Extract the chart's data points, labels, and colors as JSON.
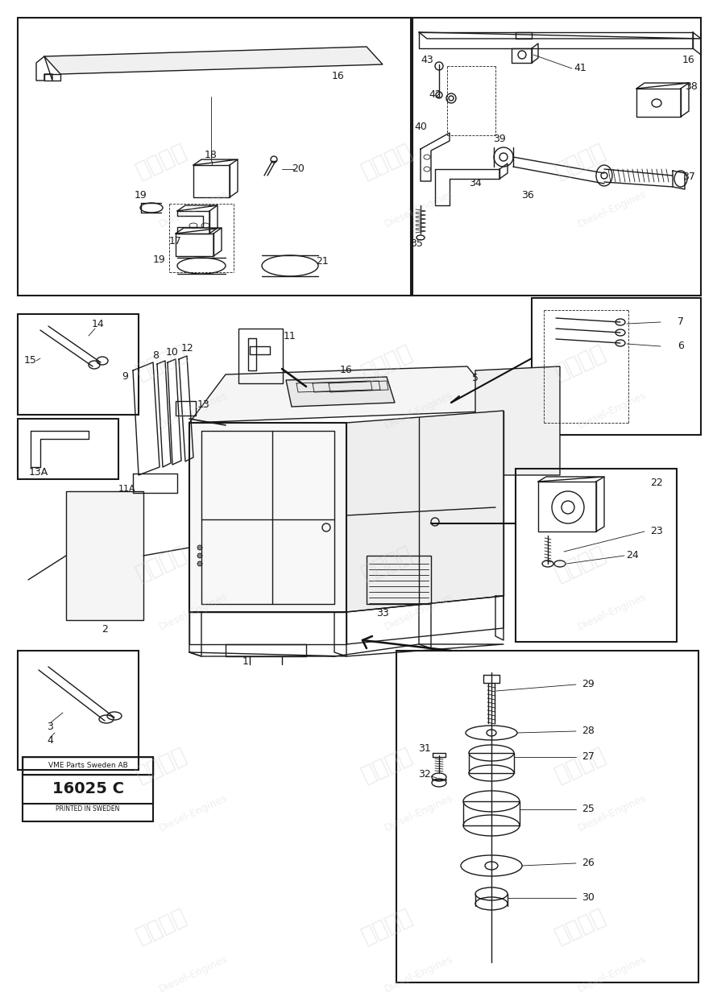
{
  "background_color": "#ffffff",
  "line_color": "#1a1a1a",
  "lw_thick": 1.5,
  "lw_med": 1.0,
  "lw_thin": 0.6,
  "label_fs": 8,
  "part_box": {
    "text1": "VME Parts Sweden AB",
    "text2": "16025 C",
    "text3": "PRINTED IN SWEDEN"
  }
}
